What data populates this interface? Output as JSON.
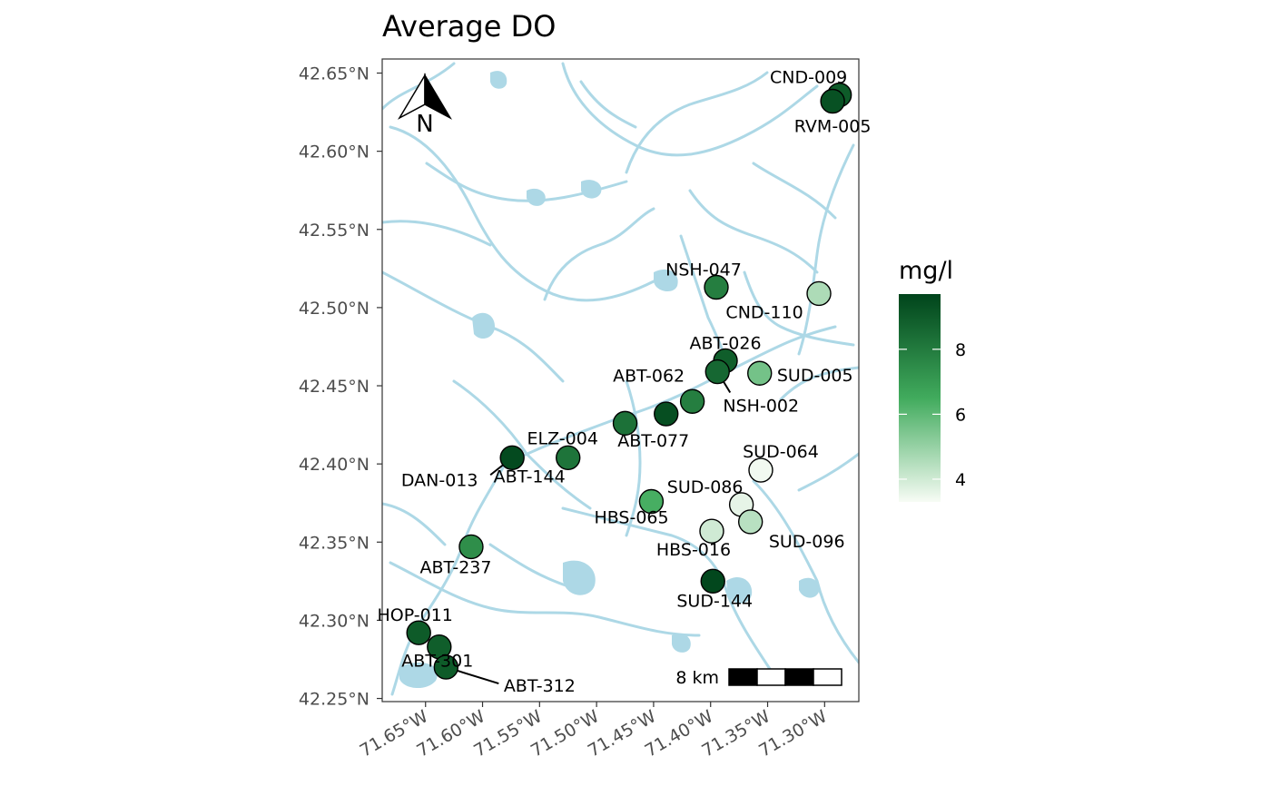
{
  "chart_data": {
    "type": "scatter",
    "subtype": "map",
    "title": "Average DO",
    "xlim": [
      -71.688,
      -71.27
    ],
    "ylim": [
      42.248,
      42.659
    ],
    "x_ticks": [
      {
        "value": -71.65,
        "label": "71.65°W"
      },
      {
        "value": -71.6,
        "label": "71.60°W"
      },
      {
        "value": -71.55,
        "label": "71.55°W"
      },
      {
        "value": -71.5,
        "label": "71.50°W"
      },
      {
        "value": -71.45,
        "label": "71.45°W"
      },
      {
        "value": -71.4,
        "label": "71.40°W"
      },
      {
        "value": -71.35,
        "label": "71.35°W"
      },
      {
        "value": -71.3,
        "label": "71.30°W"
      }
    ],
    "y_ticks": [
      {
        "value": 42.65,
        "label": "42.65°N"
      },
      {
        "value": 42.6,
        "label": "42.60°N"
      },
      {
        "value": 42.55,
        "label": "42.55°N"
      },
      {
        "value": 42.5,
        "label": "42.50°N"
      },
      {
        "value": 42.45,
        "label": "42.45°N"
      },
      {
        "value": 42.4,
        "label": "42.40°N"
      },
      {
        "value": 42.35,
        "label": "42.35°N"
      },
      {
        "value": 42.3,
        "label": "42.30°N"
      },
      {
        "value": 42.25,
        "label": "42.25°N"
      }
    ],
    "legend": {
      "title": "mg/l",
      "min": 3.3,
      "max": 9.7,
      "ticks": [
        4,
        6,
        8
      ],
      "color_low": "#f7fcf5",
      "color_high": "#00441b",
      "placement": "right"
    },
    "scale_bar": {
      "label": "8 km"
    },
    "north_arrow": {
      "label": "N"
    },
    "points": [
      {
        "id": "CND-009",
        "lon": -71.287,
        "lat": 42.636,
        "value": 9.0,
        "label_side": "n"
      },
      {
        "id": "RVM-005",
        "lon": -71.293,
        "lat": 42.632,
        "value": 9.3,
        "label_side": "s"
      },
      {
        "id": "NSH-047",
        "lon": -71.395,
        "lat": 42.513,
        "value": 7.9,
        "label_side": "n"
      },
      {
        "id": "CND-110",
        "lon": -71.305,
        "lat": 42.509,
        "value": 4.6,
        "label_side": "sw"
      },
      {
        "id": "ABT-026",
        "lon": -71.387,
        "lat": 42.466,
        "value": 8.9,
        "label_side": "n"
      },
      {
        "id": "NSH-002",
        "lon": -71.394,
        "lat": 42.459,
        "value": 8.6,
        "label_side": "se"
      },
      {
        "id": "SUD-005",
        "lon": -71.357,
        "lat": 42.458,
        "value": 5.6,
        "label_side": "e"
      },
      {
        "id": "ABT-062",
        "lon": -71.416,
        "lat": 42.44,
        "value": 7.9,
        "label_side": "nw"
      },
      {
        "id": "ABT-077",
        "lon": -71.439,
        "lat": 42.432,
        "value": 9.4,
        "label_side": "s"
      },
      {
        "id": "HBS-065",
        "lon": -71.475,
        "lat": 42.426,
        "value": 8.3,
        "label_side": "s"
      },
      {
        "id": "ELZ-004",
        "lon": -71.525,
        "lat": 42.404,
        "value": 8.2,
        "label_side": "n"
      },
      {
        "id": "ABT-144",
        "lon": -71.574,
        "lat": 42.404,
        "value": 9.5,
        "label_side": "s"
      },
      {
        "id": "DAN-013",
        "lon": -71.574,
        "lat": 42.404,
        "value": 9.5,
        "label_side": "sw"
      },
      {
        "id": "SUD-064",
        "lon": -71.356,
        "lat": 42.396,
        "value": 3.4,
        "label_side": "n"
      },
      {
        "id": "HBS-016",
        "lon": -71.452,
        "lat": 42.376,
        "value": 6.4,
        "label_side": "n"
      },
      {
        "id": "SUD-086",
        "lon": -71.373,
        "lat": 42.374,
        "value": 3.6,
        "label_side": "n"
      },
      {
        "id": "SUD-096",
        "lon": -71.365,
        "lat": 42.363,
        "value": 4.4,
        "label_side": "e"
      },
      {
        "id": "HBS-016b",
        "lon": -71.399,
        "lat": 42.357,
        "value": 4.0,
        "label_side": "s"
      },
      {
        "id": "ABT-237",
        "lon": -71.61,
        "lat": 42.347,
        "value": 7.4,
        "label_side": "s"
      },
      {
        "id": "SUD-144",
        "lon": -71.398,
        "lat": 42.325,
        "value": 9.6,
        "label_side": "s"
      },
      {
        "id": "HOP-011",
        "lon": -71.656,
        "lat": 42.292,
        "value": 9.0,
        "label_side": "n"
      },
      {
        "id": "ABT-301",
        "lon": -71.638,
        "lat": 42.283,
        "value": 8.9,
        "label_side": "s"
      },
      {
        "id": "ABT-312",
        "lon": -71.632,
        "lat": 42.27,
        "value": 9.0,
        "label_side": "e"
      }
    ],
    "labels": [
      {
        "text": "CND-009"
      },
      {
        "text": "RVM-005"
      },
      {
        "text": "NSH-047"
      },
      {
        "text": "CND-110"
      },
      {
        "text": "ABT-026"
      },
      {
        "text": "ABT-062"
      },
      {
        "text": "SUD-005"
      },
      {
        "text": "NSH-002"
      },
      {
        "text": "ABT-077"
      },
      {
        "text": "ELZ-004"
      },
      {
        "text": "SUD-064"
      },
      {
        "text": "DAN-013"
      },
      {
        "text": "ABT-144"
      },
      {
        "text": "HBS-065"
      },
      {
        "text": "SUD-086"
      },
      {
        "text": "SUD-096"
      },
      {
        "text": "HBS-016"
      },
      {
        "text": "ABT-237"
      },
      {
        "text": "SUD-144"
      },
      {
        "text": "HOP-011"
      },
      {
        "text": "ABT-301"
      },
      {
        "text": "ABT-312"
      }
    ]
  }
}
